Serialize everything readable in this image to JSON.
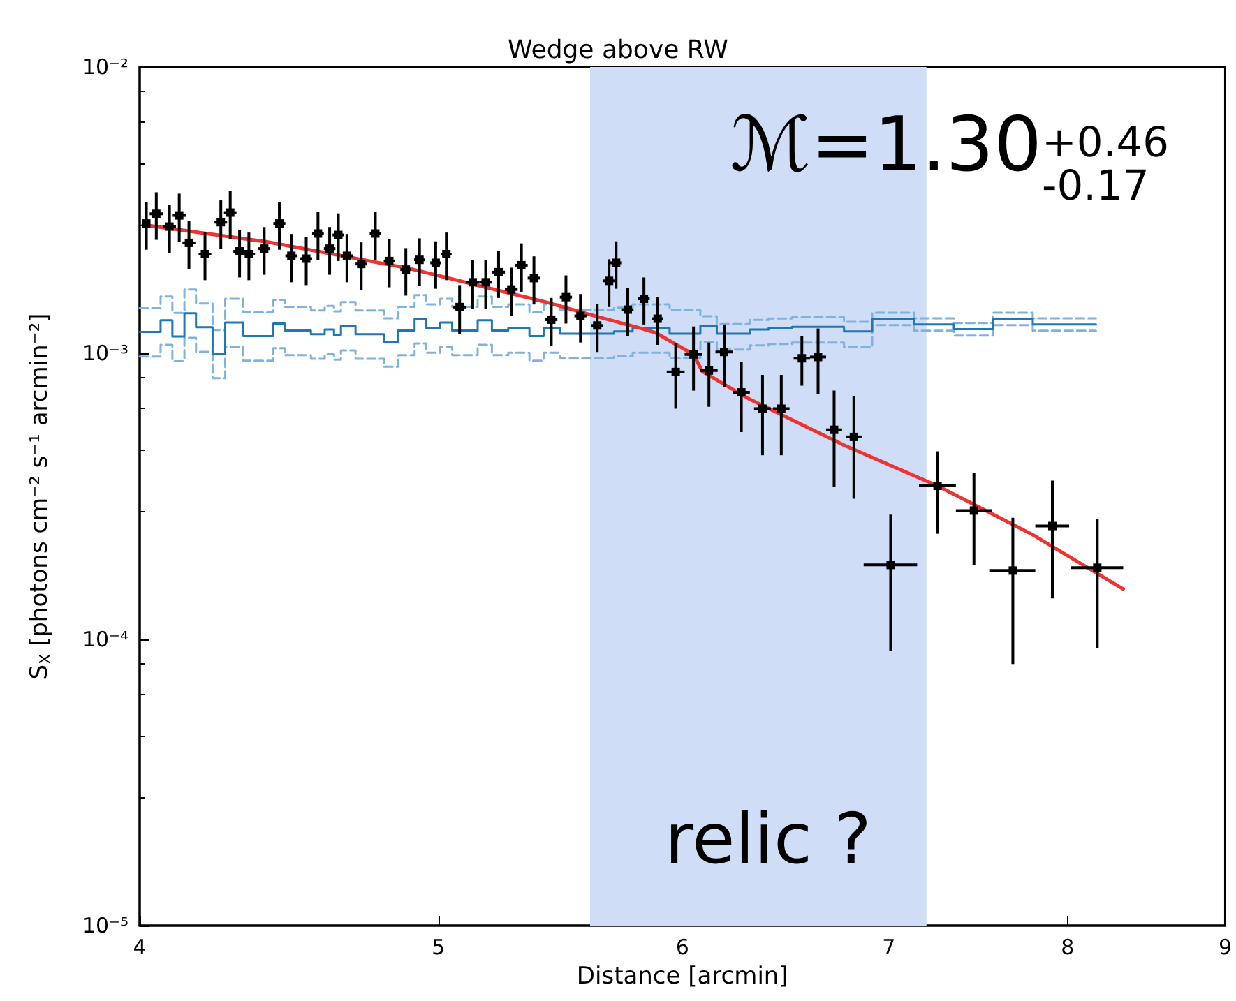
{
  "chart_data": {
    "type": "scatter",
    "title": "Wedge above RW",
    "xlabel": "Distance [arcmin]",
    "ylabel": "S$_{X}$ [photons cm⁻² s⁻¹ arcmin⁻²]",
    "annotations": [
      "ℳ=1.30$^{+0.46}$$_{-0.17}$",
      "relic ?"
    ],
    "log": "xy",
    "grid": false,
    "xlim": [
      4,
      9
    ],
    "xticks": [
      4,
      5,
      6,
      7,
      8,
      9
    ],
    "ylim": [
      1e-05,
      0.01
    ],
    "yticks": [
      {
        "value": 1e-05,
        "label": "10⁻⁵"
      },
      {
        "value": 0.0001,
        "label": "10⁻⁴"
      },
      {
        "value": 0.001,
        "label": "10⁻³"
      },
      {
        "value": 0.01,
        "label": "10⁻²"
      }
    ],
    "bands": [
      {
        "axis": "x",
        "from": 5.6,
        "to": 7.2,
        "color": "#cfdef6"
      }
    ],
    "series": [
      {
        "type": "step",
        "color": "#7fb3dd",
        "line_style": "dashed",
        "x": [
          4.0,
          4.063,
          4.099,
          4.136,
          4.172,
          4.224,
          4.264,
          4.322,
          4.42,
          4.458,
          4.546,
          4.593,
          4.625,
          4.649,
          4.7,
          4.801,
          4.852,
          4.912,
          4.955,
          5.007,
          5.052,
          5.149,
          5.204,
          5.268,
          5.352,
          5.409,
          5.475,
          5.701,
          5.781,
          5.943,
          6.081,
          6.156,
          6.31,
          6.399,
          6.512,
          6.77,
          6.914,
          7.135,
          7.349,
          7.566,
          7.795,
          8.172
        ],
        "values": [
          0.001436,
          0.001578,
          0.001384,
          0.00167,
          0.001492,
          0.001206,
          0.001549,
          0.001389,
          0.001537,
          0.001452,
          0.001411,
          0.001464,
          0.0014,
          0.001509,
          0.001411,
          0.001324,
          0.001452,
          0.001596,
          0.001481,
          0.001549,
          0.001452,
          0.001578,
          0.001452,
          0.001481,
          0.001389,
          0.001481,
          0.001416,
          0.001442,
          0.001481,
          0.001416,
          0.001347,
          0.001264,
          0.001307,
          0.001322,
          0.001336,
          0.001287,
          0.001385,
          0.001324,
          0.001275,
          0.001385,
          0.001324,
          0.001324
        ]
      },
      {
        "type": "step",
        "color": "#7fb3dd",
        "line_style": "dashed",
        "x": [
          4.0,
          4.063,
          4.099,
          4.136,
          4.172,
          4.224,
          4.264,
          4.322,
          4.42,
          4.458,
          4.546,
          4.593,
          4.625,
          4.649,
          4.7,
          4.801,
          4.852,
          4.912,
          4.955,
          5.007,
          5.052,
          5.149,
          5.204,
          5.268,
          5.352,
          5.409,
          5.475,
          5.701,
          5.781,
          5.943,
          6.081,
          6.156,
          6.31,
          6.399,
          6.512,
          6.77,
          6.914,
          7.135,
          7.349,
          7.566,
          7.795,
          8.172
        ],
        "values": [
          0.000973,
          0.001069,
          0.000938,
          0.001132,
          0.001011,
          0.000818,
          0.00105,
          0.000941,
          0.001041,
          0.000984,
          0.000956,
          0.000992,
          0.000949,
          0.001023,
          0.000956,
          0.000897,
          0.000984,
          0.001082,
          0.001004,
          0.00105,
          0.000984,
          0.001069,
          0.000984,
          0.001004,
          0.000941,
          0.001004,
          0.000959,
          0.000977,
          0.001004,
          0.000959,
          0.001097,
          0.00103,
          0.001065,
          0.001077,
          0.001089,
          0.001049,
          0.001253,
          0.001198,
          0.001153,
          0.001253,
          0.001198,
          0.001198
        ]
      },
      {
        "type": "step",
        "color": "#1f77b4",
        "line_style": "solid",
        "x": [
          4.0,
          4.063,
          4.099,
          4.136,
          4.172,
          4.224,
          4.264,
          4.322,
          4.42,
          4.458,
          4.546,
          4.593,
          4.625,
          4.649,
          4.7,
          4.801,
          4.852,
          4.912,
          4.955,
          5.007,
          5.052,
          5.149,
          5.204,
          5.268,
          5.352,
          5.409,
          5.475,
          5.701,
          5.781,
          5.943,
          6.081,
          6.156,
          6.31,
          6.399,
          6.512,
          6.77,
          6.914,
          7.135,
          7.349,
          7.566,
          7.795,
          8.172
        ],
        "values": [
          0.001187,
          0.001304,
          0.001144,
          0.00138,
          0.001233,
          0.000997,
          0.00128,
          0.001148,
          0.00127,
          0.0012,
          0.001166,
          0.00121,
          0.001157,
          0.001247,
          0.001166,
          0.001094,
          0.0012,
          0.001319,
          0.001224,
          0.00128,
          0.0012,
          0.001304,
          0.0012,
          0.001224,
          0.001148,
          0.001224,
          0.00117,
          0.001192,
          0.001224,
          0.00117,
          0.001247,
          0.00117,
          0.00121,
          0.001224,
          0.001237,
          0.001192,
          0.001319,
          0.001261,
          0.001214,
          0.001319,
          0.001261,
          0.001261
        ]
      },
      {
        "type": "line",
        "color": "#ee3333",
        "line_style": "solid",
        "x": [
          4.01,
          4.4,
          4.89,
          5.43,
          5.62,
          5.82,
          5.88,
          6.05,
          6.09,
          6.31,
          6.77,
          7.26,
          7.79,
          8.34
        ],
        "values": [
          0.00281,
          0.00245,
          0.00198,
          0.0015,
          0.00135,
          0.00122,
          0.00118,
          0.00099,
          0.000864,
          0.00069,
          0.000477,
          0.000344,
          0.000233,
          0.00015
        ]
      },
      {
        "color": "#000000",
        "marker": "square",
        "x": [
          4.02,
          4.05,
          4.09,
          4.12,
          4.15,
          4.2,
          4.25,
          4.28,
          4.31,
          4.34,
          4.39,
          4.44,
          4.48,
          4.53,
          4.57,
          4.61,
          4.64,
          4.67,
          4.72,
          4.77,
          4.82,
          4.88,
          4.93,
          4.99,
          5.03,
          5.08,
          5.13,
          5.18,
          5.23,
          5.28,
          5.32,
          5.37,
          5.44,
          5.5,
          5.56,
          5.63,
          5.68,
          5.71,
          5.76,
          5.83,
          5.89,
          5.97,
          6.05,
          6.12,
          6.19,
          6.27,
          6.37,
          6.46,
          6.56,
          6.64,
          6.72,
          6.82,
          7.01,
          7.26,
          7.46,
          7.68,
          7.91,
          8.18
        ],
        "values": [
          0.00284,
          0.00307,
          0.00277,
          0.00303,
          0.00243,
          0.00222,
          0.00287,
          0.0031,
          0.00227,
          0.00222,
          0.00232,
          0.00284,
          0.00219,
          0.00214,
          0.00262,
          0.00232,
          0.00259,
          0.00219,
          0.00205,
          0.00262,
          0.0021,
          0.00196,
          0.00212,
          0.00207,
          0.00222,
          0.00145,
          0.00177,
          0.00177,
          0.00192,
          0.00167,
          0.00203,
          0.00183,
          0.00131,
          0.00157,
          0.00135,
          0.00125,
          0.00179,
          0.00207,
          0.00142,
          0.00155,
          0.00132,
          0.00086,
          0.00099,
          0.00087,
          0.00101,
          0.00073,
          0.00064,
          0.00064,
          0.00096,
          0.00097,
          0.00054,
          0.00051,
          0.000182,
          0.000344,
          0.000282,
          0.000174,
          0.000249,
          0.000178
        ],
        "errors": [
          0.00054,
          0.00058,
          0.00053,
          0.00058,
          0.00046,
          0.00042,
          0.00055,
          0.00059,
          0.00043,
          0.00042,
          0.00044,
          0.00054,
          0.00042,
          0.00041,
          0.0005,
          0.00044,
          0.00049,
          0.00042,
          0.00039,
          0.0005,
          0.0004,
          0.00037,
          0.0004,
          0.00039,
          0.00042,
          0.00028,
          0.00034,
          0.00034,
          0.00036,
          0.00032,
          0.00039,
          0.00035,
          0.00025,
          0.0003,
          0.00026,
          0.00024,
          0.00034,
          0.00039,
          0.00027,
          0.00029,
          0.00025,
          0.00022,
          0.00025,
          0.00022,
          0.00025,
          0.0002,
          0.0002,
          0.0002,
          0.00019,
          0.00025,
          0.0002,
          0.0002,
          9.1e-05,
          0.00011,
          0.0001,
          9.2e-05,
          0.00011,
          8.5e-05
        ],
        "xerrors": [
          null,
          0.02,
          0.02,
          0.02,
          0.02,
          0.02,
          0.02,
          0.02,
          0.02,
          0.02,
          0.02,
          0.02,
          0.02,
          0.02,
          0.02,
          0.02,
          0.02,
          0.02,
          0.02,
          0.02,
          0.02,
          0.02,
          0.02,
          0.02,
          0.02,
          0.025,
          0.025,
          0.025,
          0.025,
          0.025,
          0.025,
          0.025,
          0.025,
          0.025,
          0.025,
          0.025,
          0.025,
          0.025,
          0.025,
          0.025,
          0.025,
          0.04,
          0.04,
          0.04,
          0.04,
          0.04,
          0.04,
          0.04,
          0.04,
          0.04,
          0.04,
          0.04,
          0.14,
          0.1,
          0.1,
          0.13,
          0.1,
          0.16
        ]
      }
    ]
  }
}
